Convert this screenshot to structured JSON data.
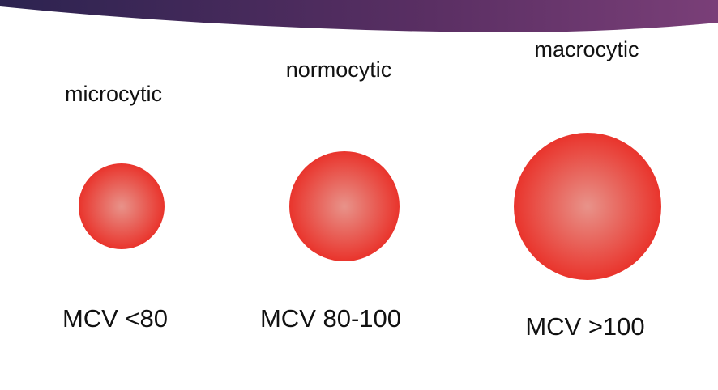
{
  "cells": [
    {
      "label": "microcytic",
      "mcv": "MCV <80"
    },
    {
      "label": "normocytic",
      "mcv": "MCV 80-100"
    },
    {
      "label": "macrocytic",
      "mcv": "MCV >100"
    }
  ]
}
